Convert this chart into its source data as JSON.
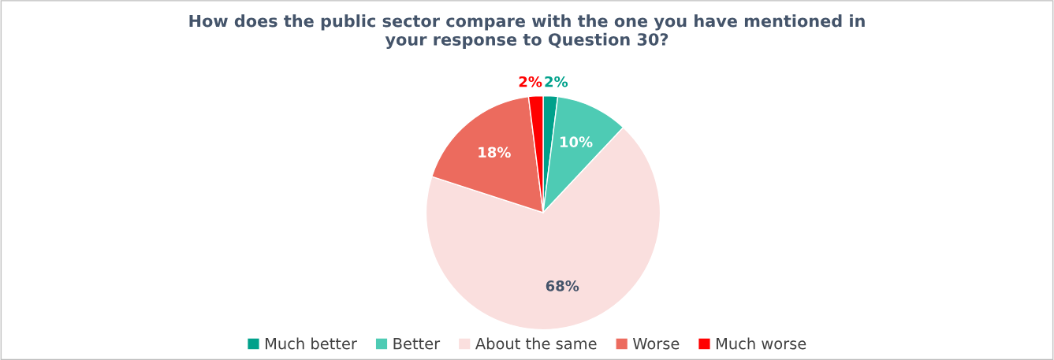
{
  "chart_data": {
    "type": "pie",
    "title": "How does the public sector compare with the one you have mentioned in\nyour response to Question 30?",
    "categories": [
      "Much better",
      "Better",
      "About the same",
      "Worse",
      "Much worse"
    ],
    "values": [
      2,
      10,
      68,
      18,
      2
    ],
    "colors": [
      "#00a18b",
      "#4ecbb4",
      "#fadfde",
      "#ec6b5e",
      "#ff0000"
    ],
    "value_labels": [
      "2%",
      "10%",
      "68%",
      "18%",
      "2%"
    ],
    "legend": "bottom"
  }
}
